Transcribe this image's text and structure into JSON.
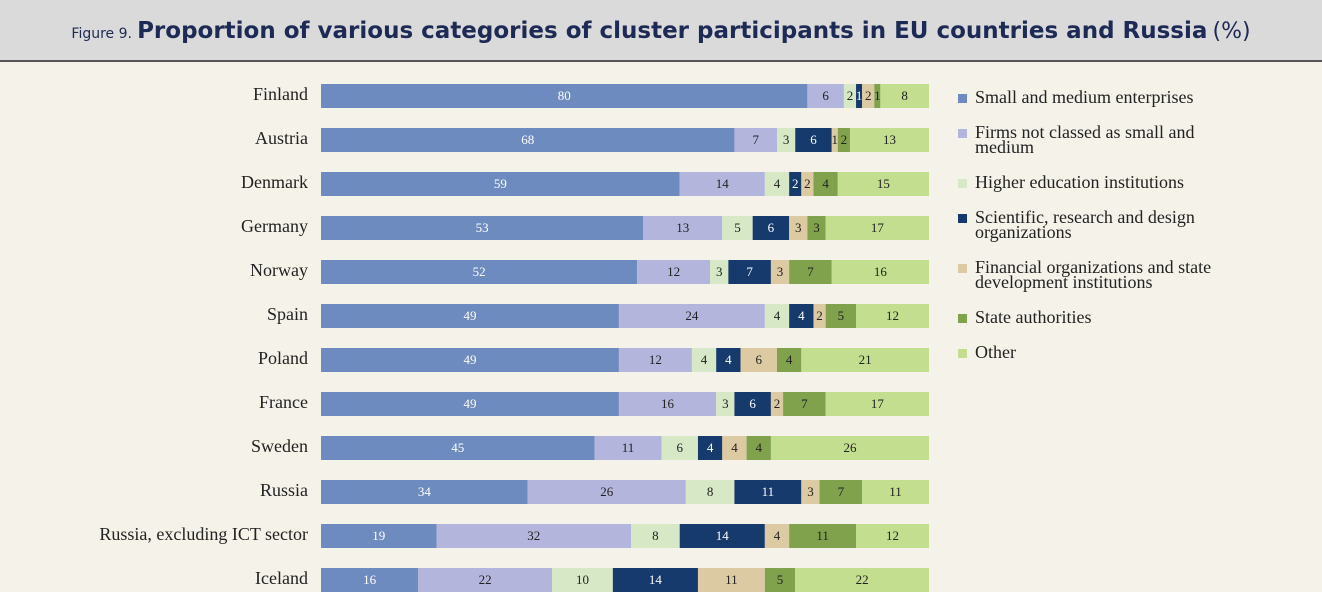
{
  "chart_data": {
    "type": "stacked-bar-horizontal",
    "figure_label": "Figure 9.",
    "title": "Proportion of various categories of cluster participants in EU countries and Russia",
    "unit": "(%)",
    "categories": [
      "Finland",
      "Austria",
      "Denmark",
      "Germany",
      "Norway",
      "Spain",
      "Poland",
      "France",
      "Sweden",
      "Russia",
      "Russia, excluding ICT sector",
      "Iceland"
    ],
    "xlim": [
      0,
      100
    ],
    "series": [
      {
        "name": "Small and medium enterprises",
        "color": "#6d8bbf",
        "values": [
          80,
          68,
          59,
          53,
          52,
          49,
          49,
          49,
          45,
          34,
          19,
          16
        ]
      },
      {
        "name": "Firms not classed as small and medium",
        "color": "#b4b5dc",
        "values": [
          6,
          7,
          14,
          13,
          12,
          24,
          12,
          16,
          11,
          26,
          32,
          22
        ]
      },
      {
        "name": "Higher education institutions",
        "color": "#d6e8c6",
        "values": [
          2,
          3,
          4,
          5,
          3,
          4,
          4,
          3,
          6,
          8,
          8,
          10
        ]
      },
      {
        "name": "Scientific, research and design organizations",
        "color": "#173a6c",
        "values": [
          1,
          6,
          2,
          6,
          7,
          4,
          4,
          6,
          4,
          11,
          14,
          14
        ]
      },
      {
        "name": "Financial organizations and state development institutions",
        "color": "#dccaa2",
        "values": [
          2,
          1,
          2,
          3,
          3,
          2,
          6,
          2,
          4,
          3,
          4,
          11
        ]
      },
      {
        "name": "State authorities",
        "color": "#80a24c",
        "values": [
          1,
          2,
          4,
          3,
          7,
          5,
          4,
          7,
          4,
          7,
          11,
          5
        ]
      },
      {
        "name": "Other",
        "color": "#c2de8e",
        "values": [
          8,
          13,
          15,
          17,
          16,
          12,
          21,
          17,
          26,
          11,
          12,
          22
        ]
      }
    ],
    "legend": "right"
  }
}
